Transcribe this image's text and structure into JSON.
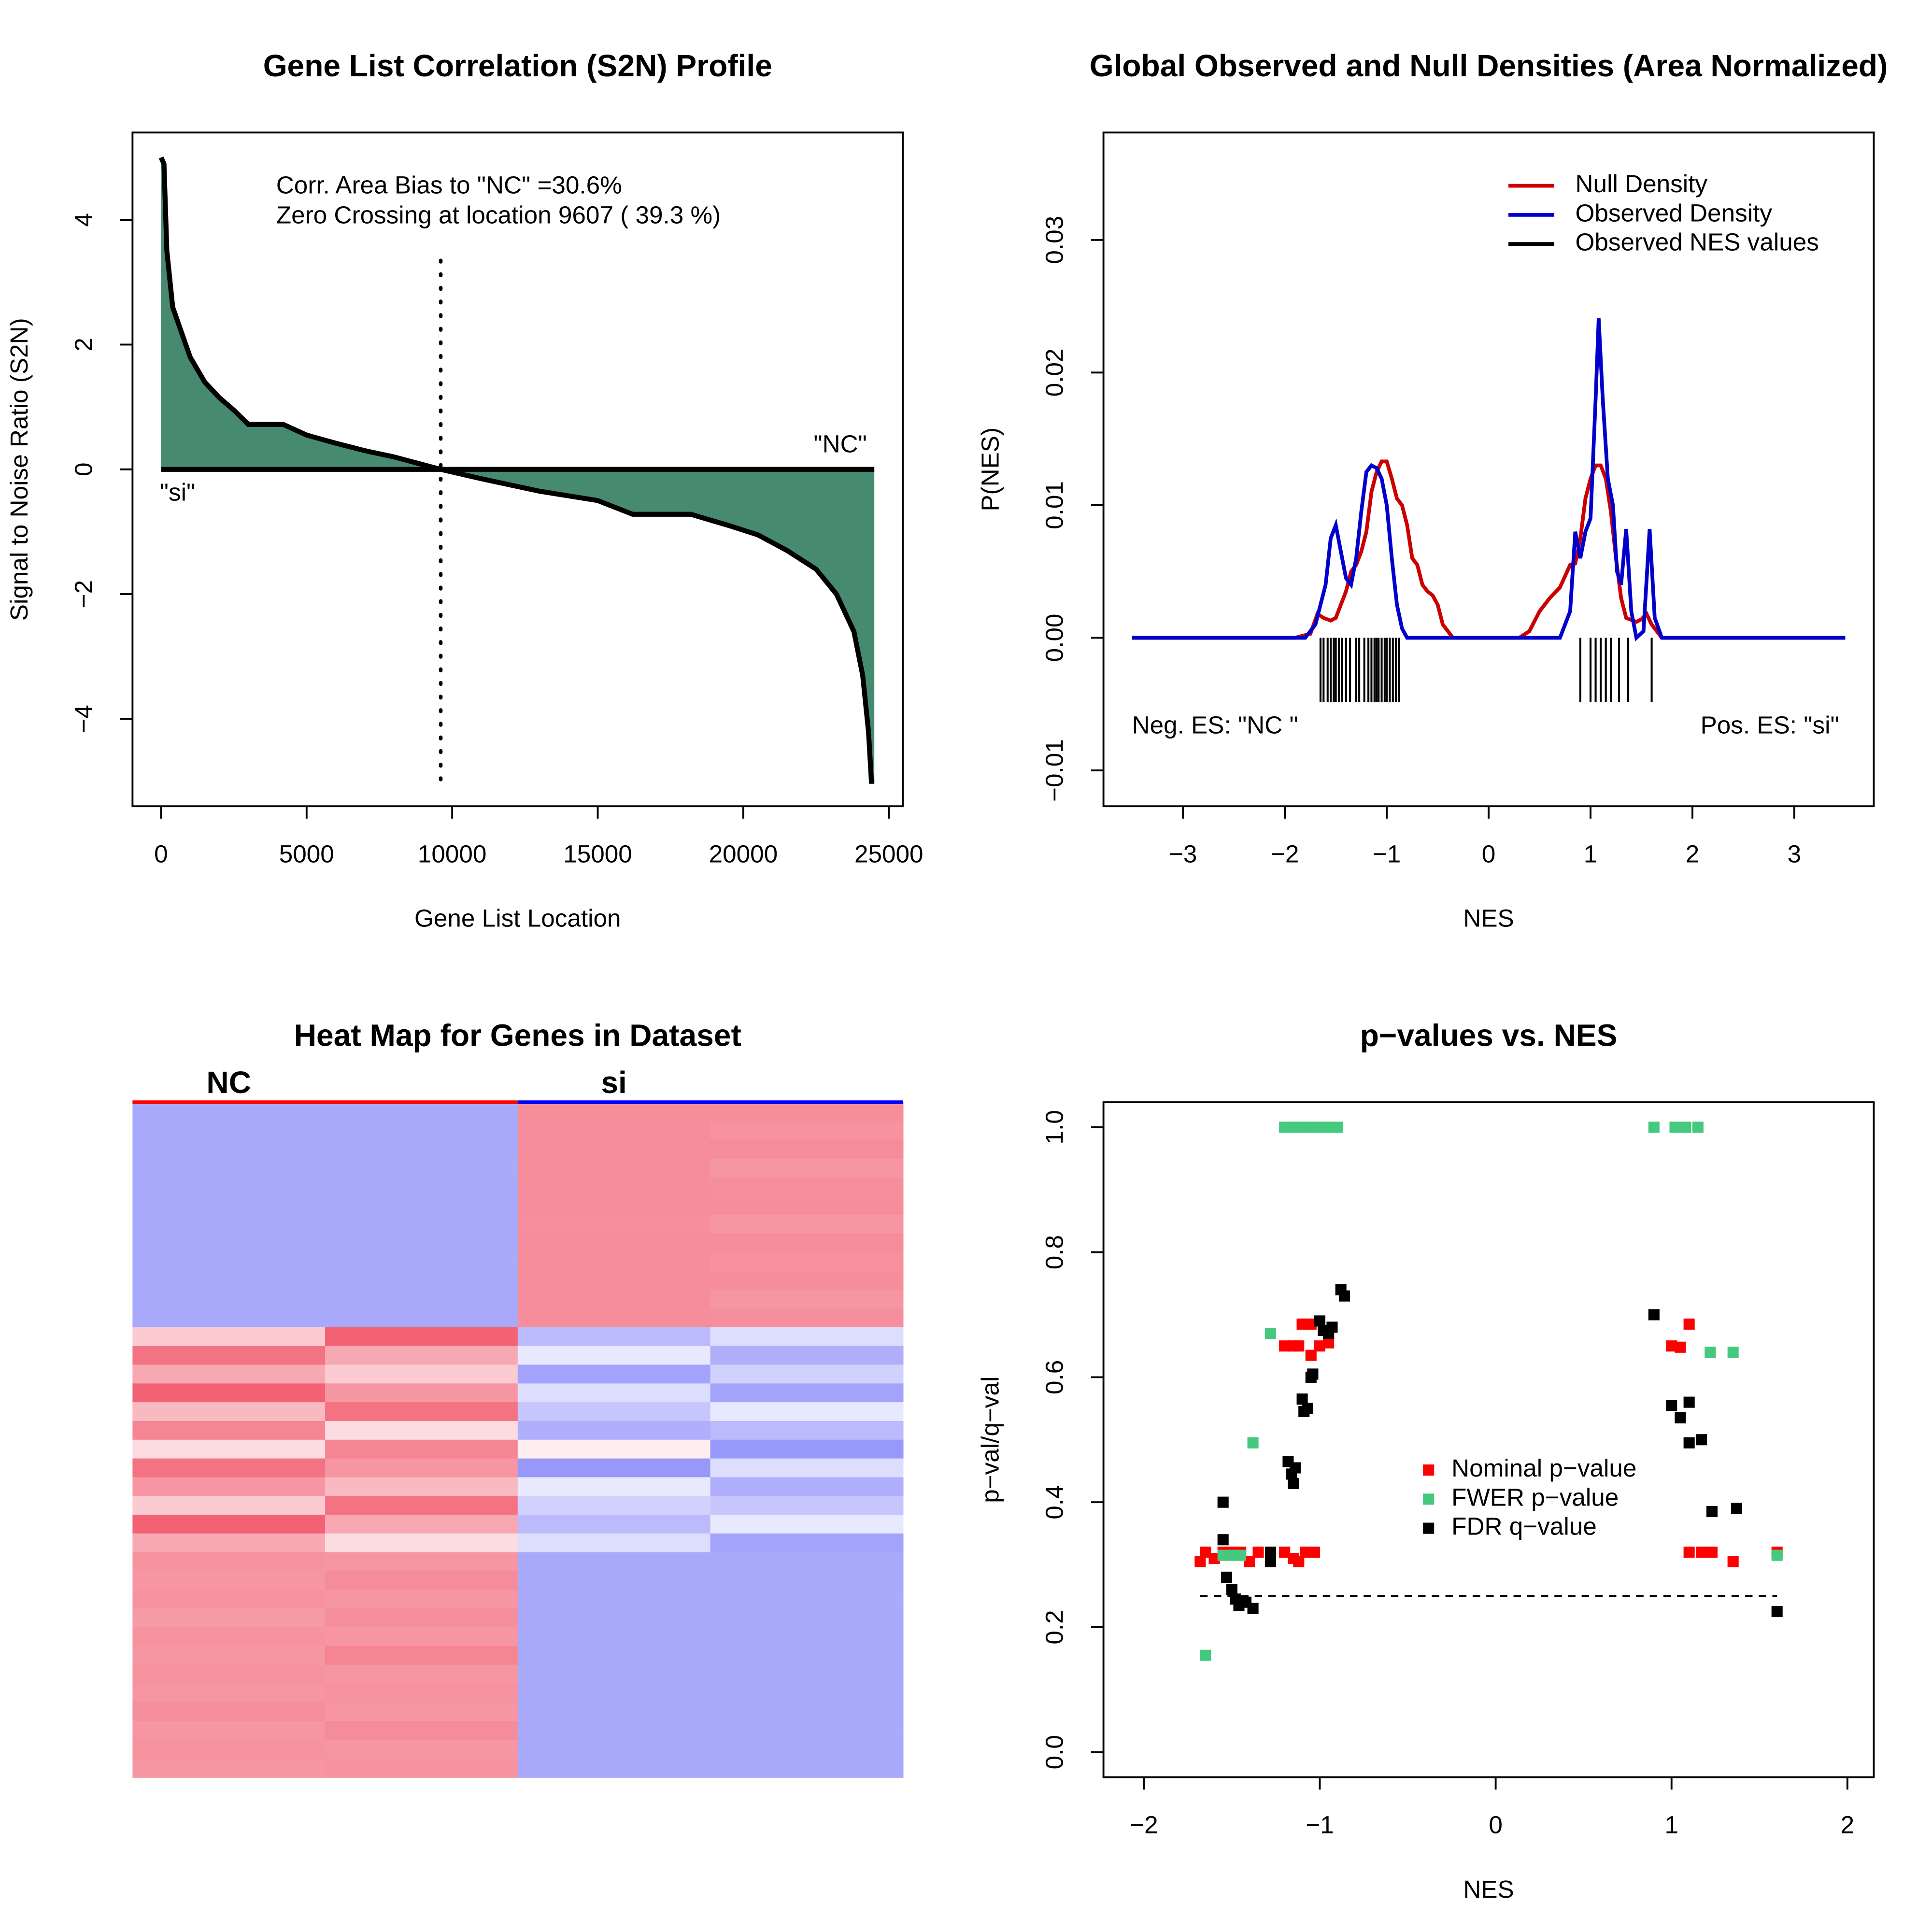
{
  "chart_data": [
    {
      "type": "area",
      "title": "Gene List Correlation (S2N) Profile",
      "xlabel": "Gene List Location",
      "ylabel": "Signal to Noise Ratio (S2N)",
      "x": [
        0,
        100,
        200,
        400,
        700,
        1000,
        1500,
        2000,
        2500,
        3000,
        4200,
        5000,
        6000,
        7000,
        8000,
        9607,
        11000,
        13000,
        15000,
        16200,
        18200,
        19500,
        20500,
        21500,
        22500,
        23200,
        23800,
        24100,
        24300,
        24400,
        24500
      ],
      "values": [
        5,
        4.9,
        3.5,
        2.6,
        2.2,
        1.8,
        1.4,
        1.15,
        0.95,
        0.72,
        0.72,
        0.55,
        0.42,
        0.3,
        0.2,
        0,
        -0.15,
        -0.35,
        -0.5,
        -0.72,
        -0.72,
        -0.9,
        -1.05,
        -1.3,
        -1.6,
        -2,
        -2.6,
        -3.3,
        -4.2,
        -5,
        -5
      ],
      "color": "#468a70",
      "xlim": [
        -980,
        25480
      ],
      "ylim": [
        -5.4,
        5.4
      ],
      "xticks": [
        0,
        5000,
        10000,
        15000,
        20000,
        25000
      ],
      "yticks": [
        {
          "value": -4,
          "label": "−4"
        },
        {
          "value": -2,
          "label": "−2"
        },
        0,
        2,
        4
      ],
      "zero_crossing": 9607,
      "annotations": [
        "Corr. Area Bias to \"NC\" =30.6%",
        "Zero Crossing at location  9607  ( 39.3  %)",
        "\"NC\"",
        "\"si\""
      ]
    },
    {
      "type": "line",
      "title": "Global Observed and Null Densities (Area Normalized)",
      "xlabel": "NES",
      "ylabel": "P(NES)",
      "xlim": [
        -3.78,
        3.78
      ],
      "ylim": [
        -0.0127,
        0.0381
      ],
      "xticks": [
        {
          "value": -3,
          "label": "−3"
        },
        {
          "value": -2,
          "label": "−2"
        },
        {
          "value": -1,
          "label": "−1"
        },
        0,
        1,
        2,
        3
      ],
      "yticks": [
        {
          "value": -0.01,
          "label": "−0.01"
        },
        {
          "value": 0,
          "label": "0.00"
        },
        0.01,
        0.02,
        0.03
      ],
      "series": [
        {
          "name": "Null Density",
          "color": "#cc0000",
          "x": [
            -3.5,
            -1.9,
            -1.75,
            -1.68,
            -1.62,
            -1.55,
            -1.5,
            -1.45,
            -1.4,
            -1.35,
            -1.3,
            -1.25,
            -1.2,
            -1.15,
            -1.1,
            -1.05,
            -1.0,
            -0.95,
            -0.9,
            -0.85,
            -0.8,
            -0.75,
            -0.7,
            -0.65,
            -0.6,
            -0.55,
            -0.5,
            -0.45,
            -0.35,
            0.3,
            0.4,
            0.5,
            0.6,
            0.7,
            0.8,
            0.85,
            0.9,
            0.95,
            1.0,
            1.05,
            1.1,
            1.15,
            1.2,
            1.25,
            1.3,
            1.35,
            1.45,
            1.5,
            1.55,
            1.6,
            1.7,
            3.5
          ],
          "values": [
            0,
            0,
            0.0003,
            0.0018,
            0.0015,
            0.0013,
            0.0015,
            0.0025,
            0.0035,
            0.005,
            0.0055,
            0.0065,
            0.008,
            0.011,
            0.0125,
            0.0133,
            0.0133,
            0.012,
            0.0105,
            0.01,
            0.0085,
            0.006,
            0.0055,
            0.004,
            0.0035,
            0.0032,
            0.0025,
            0.001,
            0,
            0,
            0.0005,
            0.002,
            0.003,
            0.0038,
            0.0055,
            0.0056,
            0.0075,
            0.0105,
            0.012,
            0.013,
            0.013,
            0.012,
            0.0095,
            0.006,
            0.003,
            0.0015,
            0.0012,
            0.0014,
            0.0018,
            0.001,
            0,
            0
          ]
        },
        {
          "name": "Observed Density",
          "color": "#0000cc",
          "x": [
            -3.5,
            -1.8,
            -1.7,
            -1.6,
            -1.55,
            -1.5,
            -1.45,
            -1.4,
            -1.35,
            -1.3,
            -1.25,
            -1.2,
            -1.15,
            -1.1,
            -1.05,
            -1.0,
            -0.95,
            -0.9,
            -0.85,
            -0.8,
            0.7,
            0.8,
            0.85,
            0.9,
            0.95,
            1.0,
            1.05,
            1.08,
            1.12,
            1.17,
            1.22,
            1.26,
            1.3,
            1.35,
            1.4,
            1.45,
            1.52,
            1.58,
            1.63,
            1.7,
            3.5
          ],
          "values": [
            0,
            0,
            0.001,
            0.004,
            0.0075,
            0.0085,
            0.0065,
            0.0045,
            0.004,
            0.006,
            0.0095,
            0.0125,
            0.013,
            0.0128,
            0.012,
            0.01,
            0.006,
            0.0025,
            0.0007,
            0,
            0,
            0.002,
            0.008,
            0.006,
            0.008,
            0.009,
            0.018,
            0.0241,
            0.018,
            0.012,
            0.01,
            0.005,
            0.004,
            0.0082,
            0.002,
            0,
            0.0005,
            0.0082,
            0.0015,
            0,
            0
          ]
        },
        {
          "name": "Observed NES values",
          "color": "#000000",
          "type": "rug",
          "values": [
            -1.65,
            -1.62,
            -1.58,
            -1.55,
            -1.52,
            -1.5,
            -1.47,
            -1.44,
            -1.4,
            -1.36,
            -1.3,
            -1.27,
            -1.22,
            -1.18,
            -1.15,
            -1.12,
            -1.1,
            -1.08,
            -1.05,
            -1.02,
            -1.0,
            -0.97,
            -0.94,
            -0.91,
            -0.88,
            0.9,
            1.0,
            1.05,
            1.1,
            1.15,
            1.2,
            1.28,
            1.37,
            1.6
          ]
        }
      ],
      "annotations": [
        "Neg. ES: \"NC \"",
        "Pos. ES: \"si\""
      ]
    },
    {
      "type": "heatmap",
      "title": "Heat Map for Genes in Dataset",
      "groups": [
        {
          "name": "NC",
          "color": "#ff0000"
        },
        {
          "name": "si",
          "color": "#0000ff"
        }
      ],
      "colorscale": [
        "#8c8cfa",
        "#ffffff",
        "#f05064"
      ],
      "rows": [
        [
          -0.75,
          -0.75,
          0.65,
          0.65
        ],
        [
          -0.75,
          -0.75,
          0.65,
          0.62
        ],
        [
          -0.75,
          -0.75,
          0.65,
          0.66
        ],
        [
          -0.75,
          -0.74,
          0.65,
          0.6
        ],
        [
          -0.75,
          -0.75,
          0.65,
          0.64
        ],
        [
          -0.75,
          -0.75,
          0.65,
          0.65
        ],
        [
          -0.75,
          -0.75,
          0.64,
          0.6
        ],
        [
          -0.75,
          -0.75,
          0.65,
          0.66
        ],
        [
          -0.75,
          -0.74,
          0.65,
          0.63
        ],
        [
          -0.75,
          -0.75,
          0.65,
          0.65
        ],
        [
          -0.75,
          -0.75,
          0.65,
          0.6
        ],
        [
          -0.75,
          -0.75,
          0.65,
          0.64
        ],
        [
          0.3,
          0.9,
          -0.6,
          -0.3
        ],
        [
          0.8,
          0.5,
          -0.2,
          -0.7
        ],
        [
          0.5,
          0.3,
          -0.8,
          -0.4
        ],
        [
          0.9,
          0.6,
          -0.3,
          -0.8
        ],
        [
          0.4,
          0.8,
          -0.5,
          -0.2
        ],
        [
          0.7,
          0.2,
          -0.7,
          -0.6
        ],
        [
          0.2,
          0.7,
          0.1,
          -0.9
        ],
        [
          0.8,
          0.6,
          -0.9,
          -0.3
        ],
        [
          0.6,
          0.4,
          -0.2,
          -0.7
        ],
        [
          0.3,
          0.8,
          -0.4,
          -0.5
        ],
        [
          0.9,
          0.5,
          -0.6,
          -0.2
        ],
        [
          0.5,
          0.2,
          -0.3,
          -0.8
        ],
        [
          0.62,
          0.6,
          -0.75,
          -0.75
        ],
        [
          0.6,
          0.66,
          -0.75,
          -0.75
        ],
        [
          0.62,
          0.6,
          -0.75,
          -0.74
        ],
        [
          0.58,
          0.64,
          -0.75,
          -0.75
        ],
        [
          0.62,
          0.6,
          -0.75,
          -0.75
        ],
        [
          0.6,
          0.7,
          -0.75,
          -0.75
        ],
        [
          0.62,
          0.6,
          -0.74,
          -0.75
        ],
        [
          0.6,
          0.62,
          -0.75,
          -0.75
        ],
        [
          0.64,
          0.6,
          -0.75,
          -0.75
        ],
        [
          0.6,
          0.66,
          -0.75,
          -0.74
        ],
        [
          0.62,
          0.6,
          -0.75,
          -0.75
        ],
        [
          0.6,
          0.62,
          -0.75,
          -0.75
        ]
      ]
    },
    {
      "type": "scatter",
      "title": "p−values vs. NES",
      "xlabel": "NES",
      "ylabel": "p−val/q−val",
      "xlim": [
        -2.23,
        2.15
      ],
      "ylim": [
        -0.04,
        1.04
      ],
      "xticks": [
        {
          "value": -2,
          "label": "−2"
        },
        {
          "value": -1,
          "label": "−1"
        },
        0,
        1,
        2
      ],
      "yticks": [
        {
          "value": 0,
          "label": "0.0"
        },
        0.2,
        0.4,
        0.6,
        0.8,
        {
          "value": 1,
          "label": "1.0"
        }
      ],
      "hline": 0.25,
      "series": [
        {
          "name": "Nominal p−value",
          "color": "#ff0000",
          "x": [
            -1.68,
            -1.65,
            -1.6,
            -1.55,
            -1.5,
            -1.45,
            -1.4,
            -1.35,
            -1.2,
            -1.15,
            -1.12,
            -1.08,
            -1.03,
            -1.2,
            -1.15,
            -1.1,
            -1.05,
            -1.0,
            -0.95,
            -1.05,
            -1.12,
            1.0,
            1.05,
            1.1,
            1.1,
            1.17,
            1.23,
            1.35,
            1.6
          ],
          "values": [
            0.305,
            0.32,
            0.31,
            0.32,
            0.32,
            0.32,
            0.305,
            0.32,
            0.32,
            0.31,
            0.305,
            0.32,
            0.32,
            0.65,
            0.65,
            0.685,
            0.685,
            0.65,
            0.655,
            0.635,
            0.65,
            0.65,
            0.648,
            0.685,
            0.32,
            0.32,
            0.32,
            0.305,
            0.32
          ]
        },
        {
          "name": "FWER p−value",
          "color": "#45c97f",
          "x": [
            -1.65,
            -1.55,
            -1.5,
            -1.45,
            -1.38,
            -1.28,
            -1.2,
            -1.15,
            -1.1,
            -1.05,
            -1.0,
            -0.95,
            -0.9,
            0.9,
            1.02,
            1.08,
            1.15,
            1.22,
            1.35,
            1.6
          ],
          "values": [
            0.155,
            0.315,
            0.315,
            0.315,
            0.495,
            0.67,
            1,
            1,
            1,
            1,
            1,
            1,
            1,
            1,
            1,
            1,
            1,
            0.64,
            0.64,
            0.315
          ]
        },
        {
          "name": "FDR q−value",
          "color": "#000000",
          "x": [
            -1.55,
            -1.55,
            -1.53,
            -1.5,
            -1.48,
            -1.46,
            -1.42,
            -1.38,
            -1.28,
            -1.28,
            -1.18,
            -1.16,
            -1.15,
            -1.14,
            -1.1,
            -1.09,
            -1.07,
            -1.05,
            -1.04,
            -1.0,
            -0.98,
            -0.95,
            -0.93,
            -0.88,
            -0.86,
            0.9,
            1.0,
            1.05,
            1.1,
            1.1,
            1.17,
            1.23,
            1.37,
            1.6
          ],
          "values": [
            0.4,
            0.34,
            0.28,
            0.26,
            0.245,
            0.235,
            0.24,
            0.23,
            0.32,
            0.305,
            0.465,
            0.445,
            0.43,
            0.455,
            0.565,
            0.545,
            0.55,
            0.6,
            0.605,
            0.69,
            0.675,
            0.67,
            0.68,
            0.74,
            0.73,
            0.7,
            0.555,
            0.535,
            0.56,
            0.495,
            0.5,
            0.385,
            0.39,
            0.225
          ]
        }
      ]
    }
  ]
}
